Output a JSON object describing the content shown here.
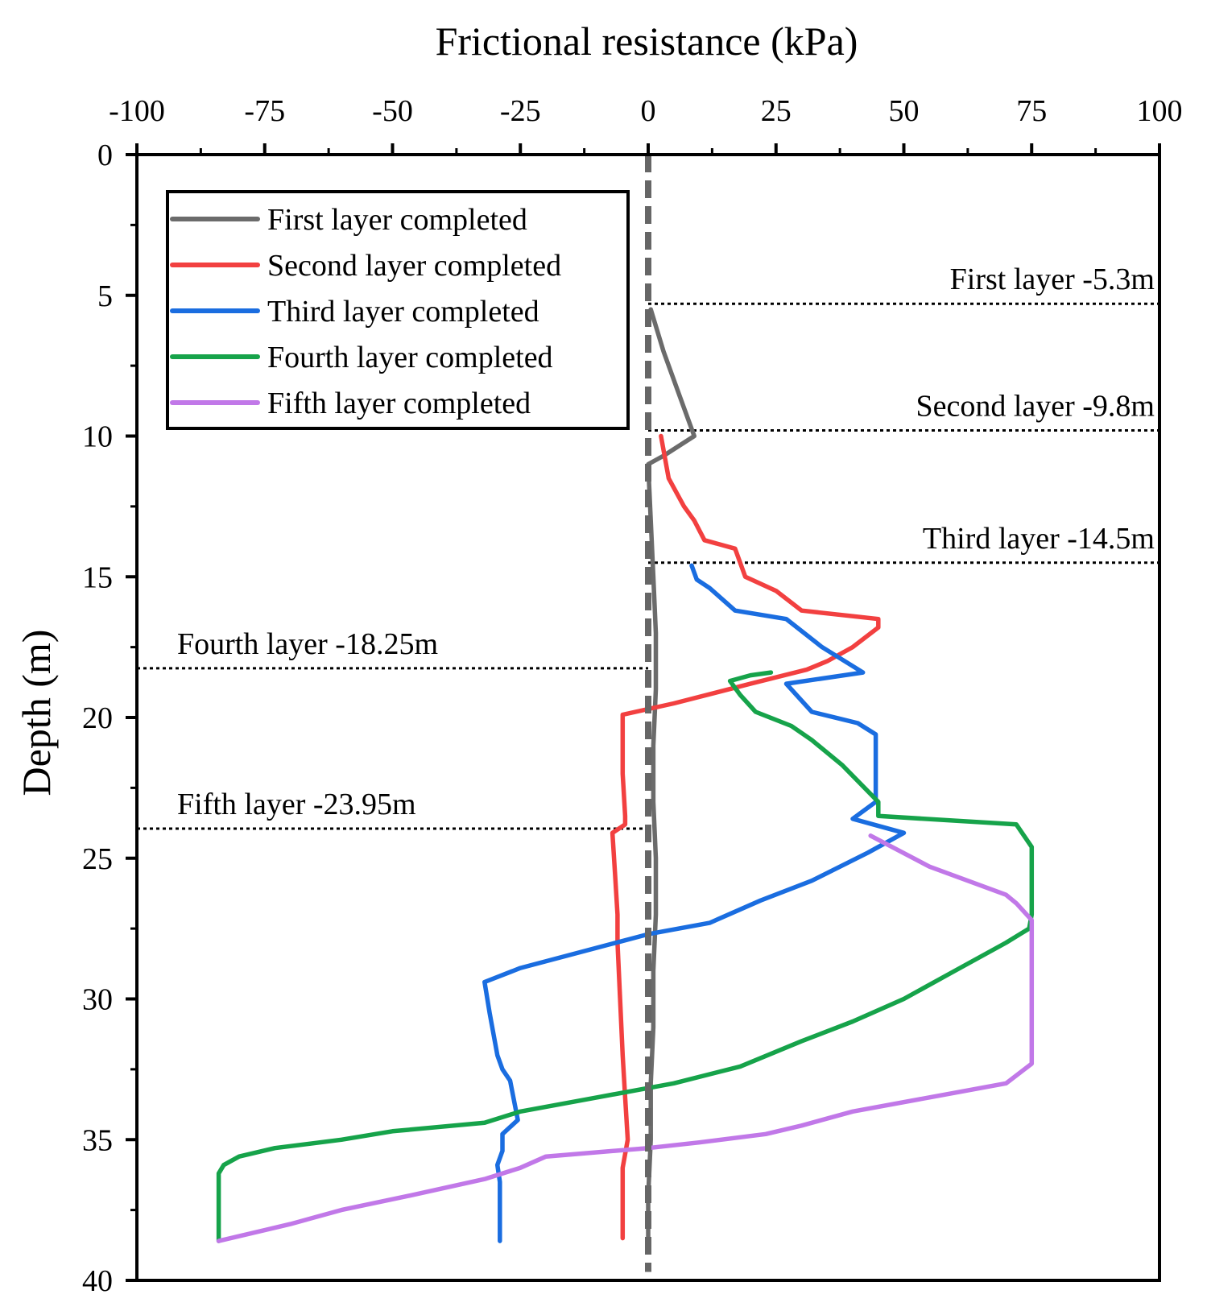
{
  "chart_data": {
    "type": "line",
    "title": "",
    "xlabel": "Frictional resistance (kPa)",
    "ylabel": "Depth (m)",
    "xlim": [
      -100,
      100
    ],
    "ylim": [
      0,
      40
    ],
    "y_inverted": true,
    "x_axis_position": "top",
    "xticks": [
      -100,
      -75,
      -50,
      -25,
      0,
      25,
      50,
      75,
      100
    ],
    "xtick_labels": [
      "-100",
      "-75",
      "-50",
      "-25",
      "0",
      "25",
      "50",
      "75",
      "100"
    ],
    "yticks": [
      0,
      5,
      10,
      15,
      20,
      25,
      30,
      35,
      40
    ],
    "ytick_labels": [
      "0",
      "5",
      "10",
      "15",
      "20",
      "25",
      "30",
      "35",
      "40"
    ],
    "grid": false,
    "legend_position": "top-left",
    "reference_line": {
      "x": 0,
      "style": "dashed",
      "color": "#666666"
    },
    "series": [
      {
        "name": "First layer completed",
        "color": "#6b6b6b",
        "points": [
          [
            0.5,
            5.5
          ],
          [
            3,
            7
          ],
          [
            6,
            8.5
          ],
          [
            9,
            10
          ],
          [
            3,
            10.7
          ],
          [
            0,
            11
          ],
          [
            0.5,
            13
          ],
          [
            1,
            15
          ],
          [
            1.5,
            17
          ],
          [
            1.5,
            19
          ],
          [
            1,
            21
          ],
          [
            1,
            23
          ],
          [
            1.5,
            25
          ],
          [
            1.5,
            27
          ],
          [
            1,
            29
          ],
          [
            1,
            31
          ],
          [
            0.5,
            33
          ],
          [
            0.5,
            35
          ],
          [
            0,
            37
          ],
          [
            0,
            38.8
          ]
        ]
      },
      {
        "name": "Second layer completed",
        "color": "#f24040",
        "points": [
          [
            2.5,
            10
          ],
          [
            4,
            11.5
          ],
          [
            7,
            12.5
          ],
          [
            9,
            13
          ],
          [
            11,
            13.7
          ],
          [
            17,
            14
          ],
          [
            19,
            15
          ],
          [
            25,
            15.5
          ],
          [
            30,
            16.2
          ],
          [
            45,
            16.5
          ],
          [
            45,
            16.8
          ],
          [
            40,
            17.5
          ],
          [
            35,
            18
          ],
          [
            31,
            18.3
          ],
          [
            20,
            18.8
          ],
          [
            5,
            19.5
          ],
          [
            -5,
            19.9
          ],
          [
            -5,
            20.5
          ],
          [
            -5,
            22
          ],
          [
            -4.5,
            23.5
          ],
          [
            -4.5,
            23.8
          ],
          [
            -7,
            24.1
          ],
          [
            -6.5,
            25.5
          ],
          [
            -6,
            27
          ],
          [
            -6,
            28
          ],
          [
            -5.5,
            30
          ],
          [
            -5,
            32
          ],
          [
            -4.5,
            33.5
          ],
          [
            -4,
            35
          ],
          [
            -5,
            36
          ],
          [
            -5,
            37.5
          ],
          [
            -5,
            38.5
          ]
        ]
      },
      {
        "name": "Third layer completed",
        "color": "#1a6de0",
        "points": [
          [
            8.5,
            14.6
          ],
          [
            9.5,
            15.1
          ],
          [
            12,
            15.4
          ],
          [
            17,
            16.2
          ],
          [
            27,
            16.5
          ],
          [
            34,
            17.5
          ],
          [
            42,
            18.4
          ],
          [
            27,
            18.8
          ],
          [
            32,
            19.8
          ],
          [
            41,
            20.2
          ],
          [
            44.5,
            20.6
          ],
          [
            44.5,
            21
          ],
          [
            44.5,
            22
          ],
          [
            44.5,
            23
          ],
          [
            40,
            23.6
          ],
          [
            50,
            24.1
          ],
          [
            43,
            24.8
          ],
          [
            32,
            25.8
          ],
          [
            22,
            26.5
          ],
          [
            12,
            27.3
          ],
          [
            0,
            27.7
          ],
          [
            -25,
            28.9
          ],
          [
            -32,
            29.4
          ],
          [
            -31,
            30.5
          ],
          [
            -29.5,
            32
          ],
          [
            -28.5,
            32.5
          ],
          [
            -27,
            32.9
          ],
          [
            -25.5,
            34.3
          ],
          [
            -28.5,
            34.8
          ],
          [
            -28.5,
            35.4
          ],
          [
            -29.5,
            35.9
          ],
          [
            -29,
            36.5
          ],
          [
            -29,
            37.5
          ],
          [
            -29,
            38.6
          ]
        ]
      },
      {
        "name": "Fourth layer completed",
        "color": "#16a34a",
        "points": [
          [
            24,
            18.4
          ],
          [
            20,
            18.5
          ],
          [
            16,
            18.7
          ],
          [
            18,
            19.2
          ],
          [
            21,
            19.8
          ],
          [
            28,
            20.3
          ],
          [
            32,
            20.8
          ],
          [
            38,
            21.7
          ],
          [
            45,
            23
          ],
          [
            45,
            23.5
          ],
          [
            72,
            23.8
          ],
          [
            75,
            24.6
          ],
          [
            75,
            25
          ],
          [
            75,
            26
          ],
          [
            75,
            27
          ],
          [
            74.5,
            27.5
          ],
          [
            70,
            28
          ],
          [
            60,
            29
          ],
          [
            50,
            30
          ],
          [
            40,
            30.8
          ],
          [
            30,
            31.5
          ],
          [
            18,
            32.4
          ],
          [
            5,
            33
          ],
          [
            -10,
            33.5
          ],
          [
            -25,
            34
          ],
          [
            -32,
            34.4
          ],
          [
            -50,
            34.7
          ],
          [
            -60,
            35
          ],
          [
            -73,
            35.3
          ],
          [
            -80,
            35.6
          ],
          [
            -83,
            35.9
          ],
          [
            -84,
            36.2
          ],
          [
            -84,
            37
          ],
          [
            -84,
            38.6
          ]
        ]
      },
      {
        "name": "Fifth layer completed",
        "color": "#c178e8",
        "points": [
          [
            43.5,
            24.2
          ],
          [
            55,
            25.3
          ],
          [
            70,
            26.3
          ],
          [
            72,
            26.6
          ],
          [
            75,
            27.2
          ],
          [
            75,
            28
          ],
          [
            75,
            30
          ],
          [
            75,
            32.3
          ],
          [
            70,
            33
          ],
          [
            55,
            33.5
          ],
          [
            40,
            34
          ],
          [
            30,
            34.5
          ],
          [
            23,
            34.8
          ],
          [
            10,
            35.1
          ],
          [
            0,
            35.3
          ],
          [
            -20,
            35.6
          ],
          [
            -25,
            36
          ],
          [
            -32,
            36.4
          ],
          [
            -47,
            37
          ],
          [
            -60,
            37.5
          ],
          [
            -70,
            38
          ],
          [
            -84,
            38.6
          ]
        ]
      }
    ],
    "annotations": [
      {
        "label": "First layer -5.3m",
        "depth": 5.3,
        "x_start": 0,
        "x_end": 100,
        "text_align": "right"
      },
      {
        "label": "Second layer -9.8m",
        "depth": 9.8,
        "x_start": 0,
        "x_end": 100,
        "text_align": "right"
      },
      {
        "label": "Third layer -14.5m",
        "depth": 14.5,
        "x_start": 0,
        "x_end": 100,
        "text_align": "right"
      },
      {
        "label": "Fourth layer -18.25m",
        "depth": 18.25,
        "x_start": -100,
        "x_end": 0,
        "text_align": "left"
      },
      {
        "label": "Fifth layer -23.95m",
        "depth": 23.95,
        "x_start": -100,
        "x_end": 0,
        "text_align": "left"
      }
    ]
  }
}
